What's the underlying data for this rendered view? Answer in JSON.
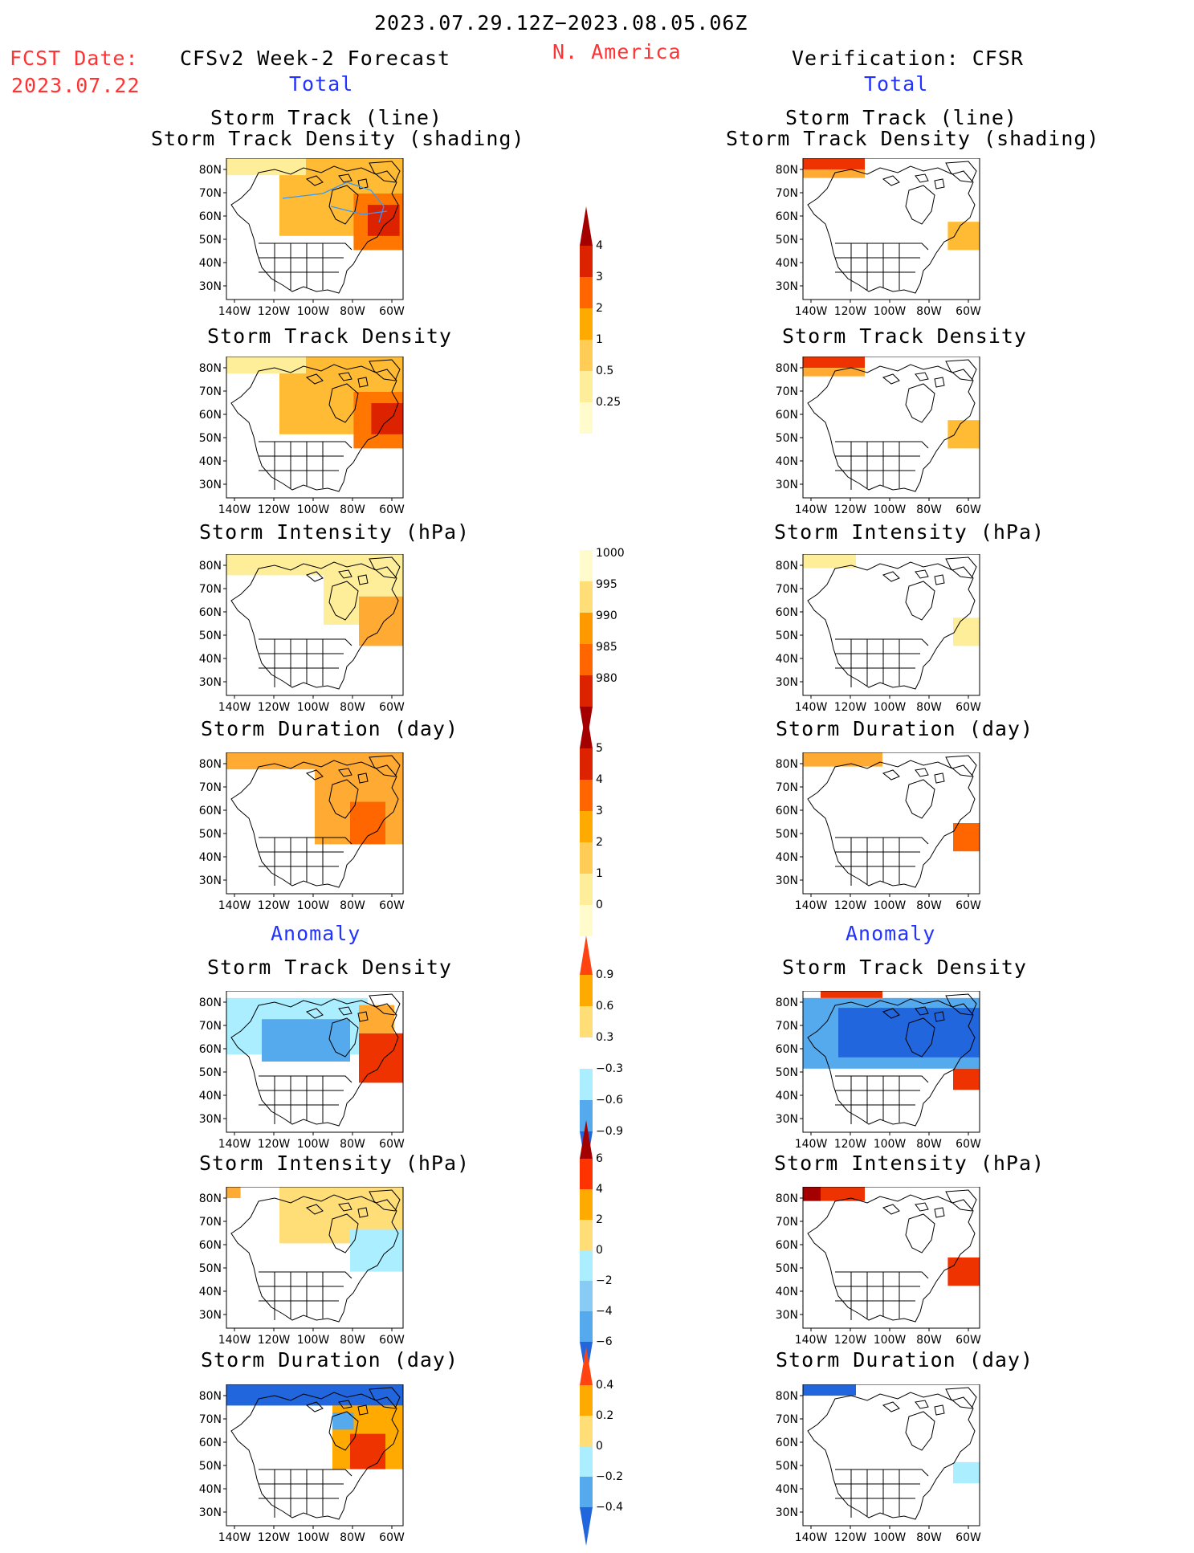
{
  "header": {
    "period": "2023.07.29.12Z−2023.08.05.06Z",
    "region": "N. America",
    "fcst_label": "FCST Date:",
    "fcst_date": "2023.07.22",
    "left_title": "CFSv2 Week-2 Forecast",
    "right_title": "Verification: CFSR",
    "total_left": "Total",
    "total_right": "Total",
    "anomaly_left": "Anomaly",
    "anomaly_right": "Anomaly"
  },
  "panel_titles": {
    "track_line": "Storm Track (line)",
    "track_shading": "Storm Track Density (shading)",
    "density": "Storm Track Density",
    "intensity": "Storm Intensity (hPa)",
    "duration": "Storm Duration (day)"
  },
  "axes": {
    "lat_labels": [
      "80N",
      "70N",
      "60N",
      "50N",
      "40N",
      "30N"
    ],
    "lon_labels": [
      "140W",
      "120W",
      "100W",
      "80W",
      "60W"
    ]
  },
  "colorbars": {
    "density_total": {
      "labels": [
        "4",
        "3",
        "2",
        "1",
        "0.5",
        "0.25"
      ],
      "colors": [
        "#a50000",
        "#dd2200",
        "#ff6600",
        "#ffaa00",
        "#ffcc55",
        "#ffee99",
        "#fffbcc"
      ]
    },
    "intensity_total": {
      "labels": [
        "1000",
        "995",
        "990",
        "985",
        "980"
      ],
      "colors": [
        "#fffbcc",
        "#ffdd77",
        "#ff9900",
        "#ff6600",
        "#dd2200",
        "#a50000"
      ]
    },
    "duration_total": {
      "labels": [
        "5",
        "4",
        "3",
        "2",
        "1",
        "0"
      ],
      "colors": [
        "#a50000",
        "#dd2200",
        "#ff6600",
        "#ffaa00",
        "#ffcc55",
        "#ffee99",
        "#fffbcc"
      ]
    },
    "density_anom": {
      "labels": [
        "0.9",
        "0.6",
        "0.3",
        "−0.3",
        "−0.6",
        "−0.9"
      ],
      "colors": [
        "#ff4411",
        "#ffaa00",
        "#ffdd77",
        "#ffffff",
        "#aaeeff",
        "#55aaee",
        "#2266dd"
      ]
    },
    "intensity_anom": {
      "labels": [
        "6",
        "4",
        "2",
        "0",
        "−2",
        "−4",
        "−6"
      ],
      "colors": [
        "#a50000",
        "#ff3300",
        "#ffaa00",
        "#ffdd77",
        "#aaeeff",
        "#88ccf5",
        "#55aaee",
        "#2266dd"
      ]
    },
    "duration_anom": {
      "labels": [
        "0.4",
        "0.2",
        "0",
        "−0.2",
        "−0.4"
      ],
      "colors": [
        "#ff4411",
        "#ffaa00",
        "#ffdd77",
        "#aaeeff",
        "#55aaee",
        "#2266dd"
      ]
    }
  }
}
